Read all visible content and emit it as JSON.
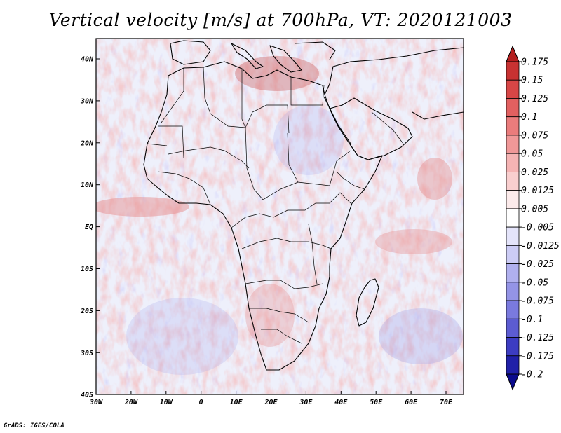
{
  "title": "Vertical velocity [m/s] at 700hPa, VT: 2020121003",
  "credit": "GrADS: IGES/COLA",
  "map": {
    "lat_labels": [
      "40N",
      "30N",
      "20N",
      "10N",
      "EQ",
      "10S",
      "20S",
      "30S",
      "40S"
    ],
    "lon_labels": [
      "30W",
      "20W",
      "10W",
      "0",
      "10E",
      "20E",
      "30E",
      "40E",
      "50E",
      "60E",
      "70E"
    ]
  },
  "colorbar": {
    "levels": [
      "0.175",
      "0.15",
      "0.125",
      "0.1",
      "0.075",
      "0.05",
      "0.025",
      "0.0125",
      "0.005",
      "-0.005",
      "-0.0125",
      "-0.025",
      "-0.05",
      "-0.075",
      "-0.1",
      "-0.125",
      "-0.175",
      "-0.2"
    ],
    "colors": [
      "#b41e1e",
      "#c83232",
      "#d84646",
      "#e26060",
      "#ea7c7c",
      "#f09898",
      "#f5b4b4",
      "#f9cfcf",
      "#fcebeb",
      "#ffffff",
      "#e4e4fa",
      "#ccccf5",
      "#b0b0ee",
      "#9494e6",
      "#7a7ade",
      "#5c5cd2",
      "#3c3cc2",
      "#2020a8",
      "#0a0a8c"
    ]
  }
}
